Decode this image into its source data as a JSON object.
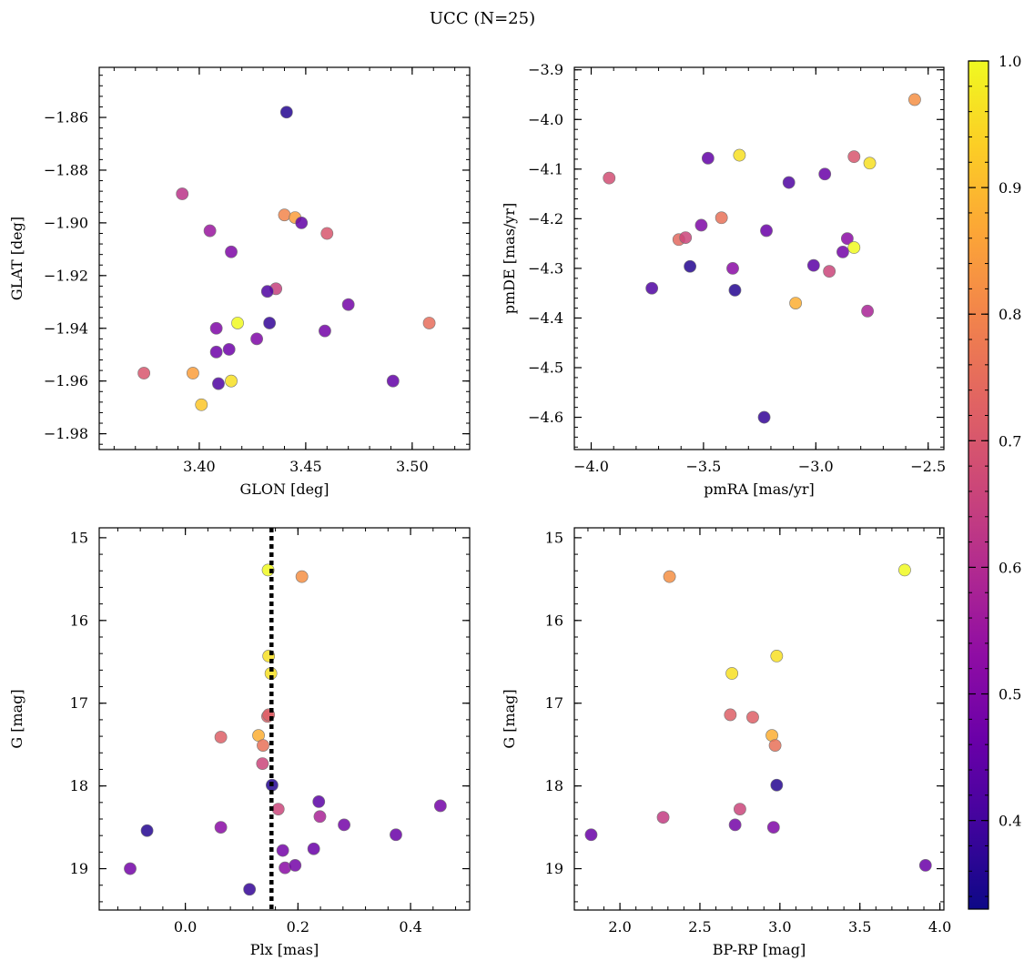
{
  "figure": {
    "title": "UCC (N=25)",
    "colorbar": {
      "vmin": 0.33,
      "vmax": 1.0,
      "ticks": [
        0.4,
        0.5,
        0.6,
        0.7,
        0.8,
        0.9,
        1.0
      ],
      "tick_labels": [
        "0.4",
        "0.5",
        "0.6",
        "0.7",
        "0.8",
        "0.9",
        "1.0"
      ],
      "colormap": "plasma"
    }
  },
  "chart_data": [
    {
      "type": "scatter",
      "xlabel": "GLON [deg]",
      "ylabel": "GLAT [deg]",
      "xlim": [
        3.353,
        3.527
      ],
      "ylim": [
        -1.986,
        -1.841
      ],
      "y_inverted": false,
      "xticks": [
        3.4,
        3.45,
        3.5
      ],
      "xtick_labels": [
        "3.40",
        "3.45",
        "3.50"
      ],
      "yticks": [
        -1.86,
        -1.88,
        -1.9,
        -1.92,
        -1.94,
        -1.96,
        -1.98
      ],
      "ytick_labels": [
        "−1.86",
        "−1.88",
        "−1.90",
        "−1.92",
        "−1.94",
        "−1.96",
        "−1.98"
      ],
      "vline": null,
      "x": [
        3.441,
        3.392,
        3.44,
        3.445,
        3.448,
        3.405,
        3.46,
        3.415,
        3.436,
        3.432,
        3.47,
        3.408,
        3.433,
        3.418,
        3.459,
        3.508,
        3.427,
        3.408,
        3.414,
        3.397,
        3.374,
        3.409,
        3.415,
        3.491,
        3.401
      ],
      "y": [
        -1.858,
        -1.889,
        -1.897,
        -1.898,
        -1.9,
        -1.903,
        -1.904,
        -1.911,
        -1.925,
        -1.926,
        -1.931,
        -1.94,
        -1.938,
        -1.938,
        -1.941,
        -1.938,
        -1.944,
        -1.949,
        -1.948,
        -1.957,
        -1.957,
        -1.961,
        -1.96,
        -1.96,
        -1.969
      ],
      "c": [
        0.36,
        0.62,
        0.8,
        0.85,
        0.45,
        0.55,
        0.7,
        0.5,
        0.65,
        0.42,
        0.48,
        0.5,
        0.38,
        1.0,
        0.48,
        0.75,
        0.5,
        0.47,
        0.47,
        0.85,
        0.7,
        0.42,
        0.96,
        0.45,
        0.92
      ]
    },
    {
      "type": "scatter",
      "xlabel": "pmRA [mas/yr]",
      "ylabel": "pmDE [mas/yr]",
      "xlim": [
        -4.075,
        -2.43
      ],
      "ylim": [
        -4.665,
        -3.895
      ],
      "y_inverted": false,
      "xticks": [
        -4.0,
        -3.5,
        -3.0,
        -2.5
      ],
      "xtick_labels": [
        "−4.0",
        "−3.5",
        "−3.0",
        "−2.5"
      ],
      "yticks": [
        -3.9,
        -4.0,
        -4.1,
        -4.2,
        -4.3,
        -4.4,
        -4.5,
        -4.6
      ],
      "ytick_labels": [
        "−3.9",
        "−4.0",
        "−4.1",
        "−4.2",
        "−4.3",
        "−4.4",
        "−4.5",
        "−4.6"
      ],
      "vline": null,
      "x": [
        -2.56,
        -3.34,
        -2.76,
        -2.83,
        -3.48,
        -3.12,
        -3.92,
        -2.96,
        -3.42,
        -3.61,
        -3.58,
        -3.51,
        -3.22,
        -2.86,
        -2.83,
        -2.88,
        -3.56,
        -3.01,
        -2.94,
        -3.37,
        -3.73,
        -3.36,
        -3.09,
        -2.77,
        -3.23
      ],
      "y": [
        -3.96,
        -4.072,
        -4.088,
        -4.075,
        -4.078,
        -4.127,
        -4.118,
        -4.11,
        -4.198,
        -4.242,
        -4.238,
        -4.213,
        -4.224,
        -4.24,
        -4.258,
        -4.267,
        -4.296,
        -4.294,
        -4.306,
        -4.3,
        -4.34,
        -4.344,
        -4.37,
        -4.386,
        -4.6
      ],
      "c": [
        0.82,
        0.96,
        0.96,
        0.7,
        0.45,
        0.42,
        0.68,
        0.46,
        0.76,
        0.74,
        0.66,
        0.5,
        0.46,
        0.52,
        1.0,
        0.48,
        0.36,
        0.44,
        0.66,
        0.52,
        0.42,
        0.36,
        0.88,
        0.58,
        0.38
      ]
    },
    {
      "type": "scatter",
      "xlabel": "Plx [mas]",
      "ylabel": "G [mag]",
      "xlim": [
        -0.153,
        0.505
      ],
      "ylim": [
        19.5,
        14.88
      ],
      "y_inverted": true,
      "xticks": [
        0.0,
        0.2,
        0.4
      ],
      "xtick_labels": [
        "0.0",
        "0.2",
        "0.4"
      ],
      "yticks": [
        15,
        16,
        17,
        18,
        19
      ],
      "ytick_labels": [
        "15",
        "16",
        "17",
        "18",
        "19"
      ],
      "vline": 0.153,
      "x": [
        0.147,
        0.207,
        0.148,
        0.152,
        0.063,
        0.146,
        0.148,
        0.13,
        0.138,
        0.137,
        0.154,
        0.165,
        0.237,
        0.239,
        0.453,
        0.282,
        0.063,
        -0.068,
        0.374,
        0.228,
        0.173,
        0.177,
        0.195,
        -0.098,
        0.114
      ],
      "y": [
        15.39,
        15.47,
        16.43,
        16.64,
        17.41,
        17.16,
        17.14,
        17.39,
        17.51,
        17.73,
        17.99,
        18.28,
        18.19,
        18.37,
        18.24,
        18.47,
        18.5,
        18.54,
        18.59,
        18.76,
        18.78,
        18.99,
        18.96,
        19.0,
        19.25
      ],
      "c": [
        1.0,
        0.82,
        0.96,
        0.96,
        0.72,
        0.72,
        0.72,
        0.88,
        0.76,
        0.66,
        0.36,
        0.66,
        0.44,
        0.58,
        0.48,
        0.48,
        0.52,
        0.36,
        0.46,
        0.46,
        0.48,
        0.52,
        0.48,
        0.48,
        0.38
      ]
    },
    {
      "type": "scatter",
      "xlabel": "BP-RP [mag]",
      "ylabel": "G [mag]",
      "xlim": [
        1.715,
        4.025
      ],
      "ylim": [
        19.5,
        14.88
      ],
      "y_inverted": true,
      "xticks": [
        2.0,
        2.5,
        3.0,
        3.5,
        4.0
      ],
      "xtick_labels": [
        "2.0",
        "2.5",
        "3.0",
        "3.5",
        "4.0"
      ],
      "yticks": [
        15,
        16,
        17,
        18,
        19
      ],
      "ytick_labels": [
        "15",
        "16",
        "17",
        "18",
        "19"
      ],
      "vline": null,
      "x": [
        3.78,
        2.31,
        2.98,
        2.7,
        2.69,
        2.83,
        2.95,
        2.97,
        2.98,
        2.75,
        2.27,
        2.72,
        2.96,
        1.82,
        3.91
      ],
      "y": [
        15.39,
        15.47,
        16.43,
        16.64,
        17.14,
        17.17,
        17.39,
        17.51,
        17.99,
        18.28,
        18.38,
        18.47,
        18.5,
        18.59,
        18.96
      ],
      "c": [
        1.0,
        0.82,
        0.96,
        0.96,
        0.72,
        0.72,
        0.88,
        0.76,
        0.36,
        0.66,
        0.64,
        0.48,
        0.5,
        0.46,
        0.46
      ]
    }
  ]
}
